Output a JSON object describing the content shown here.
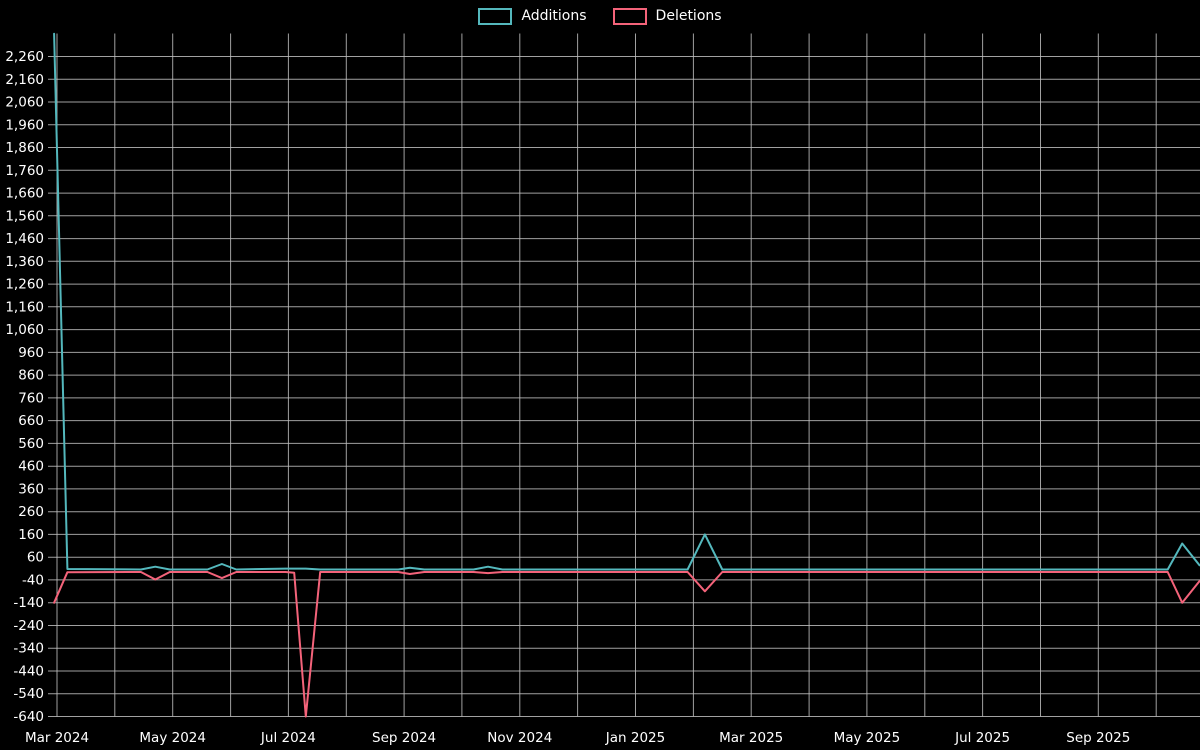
{
  "chart_data": {
    "type": "line",
    "title": "",
    "legend_position": "top-center",
    "background_color": "#000000",
    "grid": {
      "visible": true,
      "color": "#bdbdbd"
    },
    "x_axis": {
      "unit": "months since Mar 2024",
      "range": [
        -0.15,
        19.8
      ],
      "tick_positions": [
        0,
        2,
        4,
        6,
        8,
        10,
        12,
        14,
        16,
        18
      ],
      "tick_labels": [
        "Mar 2024",
        "May 2024",
        "Jul 2024",
        "Sep 2024",
        "Nov 2024",
        "Jan 2025",
        "Mar 2025",
        "May 2025",
        "Jul 2025",
        "Sep 2025"
      ]
    },
    "y_axis": {
      "min": -640,
      "max": 2260,
      "step": 100,
      "ticks": [
        -640,
        -540,
        -440,
        -340,
        -240,
        -140,
        -40,
        60,
        160,
        260,
        360,
        460,
        560,
        660,
        760,
        860,
        960,
        1060,
        1160,
        1260,
        1360,
        1460,
        1560,
        1660,
        1760,
        1860,
        1960,
        2060,
        2160,
        2260
      ]
    },
    "series": [
      {
        "name": "Additions",
        "color": "#54b8bd",
        "points": [
          [
            -0.05,
            2360
          ],
          [
            0.18,
            8
          ],
          [
            1.45,
            6
          ],
          [
            1.7,
            18
          ],
          [
            1.95,
            6
          ],
          [
            2.6,
            6
          ],
          [
            2.85,
            30
          ],
          [
            3.1,
            6
          ],
          [
            3.95,
            10
          ],
          [
            4.3,
            10
          ],
          [
            4.55,
            6
          ],
          [
            5.9,
            6
          ],
          [
            6.1,
            14
          ],
          [
            6.35,
            6
          ],
          [
            7.2,
            6
          ],
          [
            7.45,
            18
          ],
          [
            7.7,
            6
          ],
          [
            10.9,
            6
          ],
          [
            11.2,
            160
          ],
          [
            11.5,
            6
          ],
          [
            19.2,
            6
          ],
          [
            19.45,
            120
          ],
          [
            19.75,
            25
          ]
        ]
      },
      {
        "name": "Deletions",
        "color": "#f4637a",
        "points": [
          [
            -0.05,
            -140
          ],
          [
            0.18,
            -6
          ],
          [
            1.45,
            -5
          ],
          [
            1.7,
            -38
          ],
          [
            1.95,
            -5
          ],
          [
            2.6,
            -5
          ],
          [
            2.85,
            -32
          ],
          [
            3.1,
            -5
          ],
          [
            3.95,
            -5
          ],
          [
            4.1,
            -8
          ],
          [
            4.3,
            -640
          ],
          [
            4.55,
            -5
          ],
          [
            5.9,
            -5
          ],
          [
            6.1,
            -14
          ],
          [
            6.35,
            -5
          ],
          [
            7.2,
            -5
          ],
          [
            7.45,
            -10
          ],
          [
            7.7,
            -5
          ],
          [
            10.9,
            -5
          ],
          [
            11.2,
            -90
          ],
          [
            11.5,
            -5
          ],
          [
            19.2,
            -5
          ],
          [
            19.45,
            -140
          ],
          [
            19.75,
            -45
          ]
        ]
      }
    ]
  }
}
